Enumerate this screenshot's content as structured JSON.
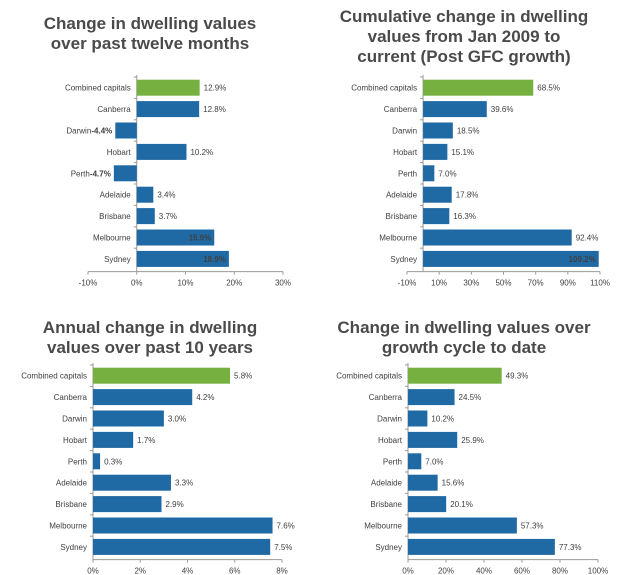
{
  "colors": {
    "bar": "#1f6aa5",
    "highlight": "#76b041",
    "axis": "#9a9a9a",
    "text": "#404040",
    "title": "#4a4a4a",
    "inside_label": "#ffffff"
  },
  "chart_data": [
    {
      "type": "bar",
      "orientation": "horizontal",
      "title_lines": [
        "Change in dwelling values",
        "over past twelve months"
      ],
      "categories": [
        "Combined capitals",
        "Canberra",
        "Darwin",
        "Hobart",
        "Perth",
        "Adelaide",
        "Brisbane",
        "Melbourne",
        "Sydney"
      ],
      "values": [
        12.9,
        12.8,
        -4.4,
        10.2,
        -4.7,
        3.4,
        3.7,
        15.9,
        18.9
      ],
      "labels": [
        "12.9%",
        "12.8%",
        "-4.4%",
        "10.2%",
        "-4.7%",
        "3.4%",
        "3.7%",
        "15.9%",
        "18.9%"
      ],
      "highlight_index": 0,
      "inside_label_indices": [
        7,
        8
      ],
      "xlim": [
        -10,
        30
      ],
      "ticks": [
        -10,
        0,
        10,
        20,
        30
      ],
      "tick_labels": [
        "-10%",
        "0%",
        "10%",
        "20%",
        "30%"
      ]
    },
    {
      "type": "bar",
      "orientation": "horizontal",
      "title_lines": [
        "Cumulative change in dwelling",
        "values from Jan 2009 to",
        "current (Post GFC growth)"
      ],
      "categories": [
        "Combined capitals",
        "Canberra",
        "Darwin",
        "Hobart",
        "Perth",
        "Adelaide",
        "Brisbane",
        "Melbourne",
        "Sydney"
      ],
      "values": [
        68.5,
        39.6,
        18.5,
        15.1,
        7.0,
        17.8,
        16.3,
        92.4,
        109.2
      ],
      "labels": [
        "68.5%",
        "39.6%",
        "18.5%",
        "15.1%",
        "7.0%",
        "17.8%",
        "16.3%",
        "92.4%",
        "109.2%"
      ],
      "highlight_index": 0,
      "inside_label_indices": [
        8
      ],
      "xlim": [
        -10,
        110
      ],
      "ticks": [
        -10,
        10,
        30,
        50,
        70,
        90,
        110
      ],
      "tick_labels": [
        "-10%",
        "10%",
        "30%",
        "50%",
        "70%",
        "90%",
        "110%"
      ]
    },
    {
      "type": "bar",
      "orientation": "horizontal",
      "title_lines": [
        "Annual change in dwelling",
        "values over past 10 years"
      ],
      "categories": [
        "Combined capitals",
        "Canberra",
        "Darwin",
        "Hobart",
        "Perth",
        "Adelaide",
        "Brisbane",
        "Melbourne",
        "Sydney"
      ],
      "values": [
        5.8,
        4.2,
        3.0,
        1.7,
        0.3,
        3.3,
        2.9,
        7.6,
        7.5
      ],
      "labels": [
        "5.8%",
        "4.2%",
        "3.0%",
        "1.7%",
        "0.3%",
        "3.3%",
        "2.9%",
        "7.6%",
        "7.5%"
      ],
      "highlight_index": 0,
      "inside_label_indices": [],
      "xlim": [
        0,
        8
      ],
      "ticks": [
        0,
        2,
        4,
        6,
        8
      ],
      "tick_labels": [
        "0%",
        "2%",
        "4%",
        "6%",
        "8%"
      ]
    },
    {
      "type": "bar",
      "orientation": "horizontal",
      "title_lines": [
        "Change in dwelling values over",
        "growth cycle to date"
      ],
      "categories": [
        "Combined capitals",
        "Canberra",
        "Darwin",
        "Hobart",
        "Perth",
        "Adelaide",
        "Brisbane",
        "Melbourne",
        "Sydney"
      ],
      "values": [
        49.3,
        24.5,
        10.2,
        25.9,
        7.0,
        15.6,
        20.1,
        57.3,
        77.3
      ],
      "labels": [
        "49.3%",
        "24.5%",
        "10.2%",
        "25.9%",
        "7.0%",
        "15.6%",
        "20.1%",
        "57.3%",
        "77.3%"
      ],
      "highlight_index": 0,
      "inside_label_indices": [],
      "xlim": [
        0,
        100
      ],
      "ticks": [
        0,
        20,
        40,
        60,
        80,
        100
      ],
      "tick_labels": [
        "0%",
        "20%",
        "40%",
        "60%",
        "80%",
        "100%"
      ]
    }
  ]
}
